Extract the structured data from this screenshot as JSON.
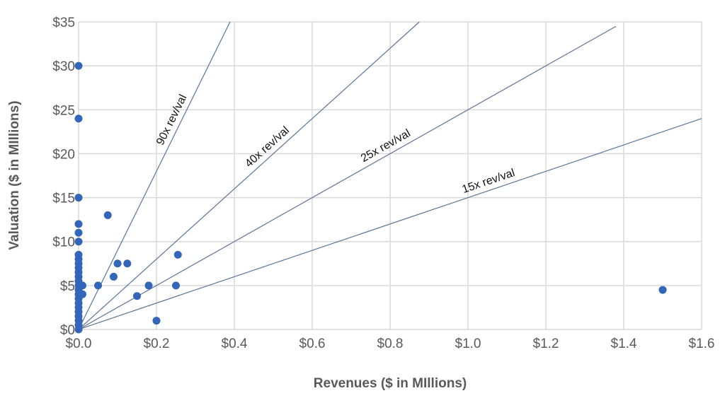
{
  "chart_data": {
    "type": "scatter",
    "title": "",
    "xlabel": "Revenues ($ in MIllions)",
    "ylabel": "Valuation ($ in MIllions)",
    "xlim": [
      0,
      1.6
    ],
    "ylim": [
      0,
      35
    ],
    "grid": true,
    "x_ticks": [
      "$0.0",
      "$0.2",
      "$0.4",
      "$0.6",
      "$0.8",
      "$1.0",
      "$1.2",
      "$1.4",
      "$1.6"
    ],
    "y_ticks": [
      "$0",
      "$5",
      "$10",
      "$15",
      "$20",
      "$25",
      "$30",
      "$35"
    ],
    "point_color": "#3366b8",
    "line_color": "#5a7596",
    "points": [
      [
        0,
        30
      ],
      [
        0,
        24
      ],
      [
        0,
        15
      ],
      [
        0,
        12
      ],
      [
        0,
        11
      ],
      [
        0,
        10
      ],
      [
        0,
        8.5
      ],
      [
        0,
        8
      ],
      [
        0,
        7.5
      ],
      [
        0,
        7
      ],
      [
        0,
        6.5
      ],
      [
        0,
        6
      ],
      [
        0,
        5.5
      ],
      [
        0,
        5
      ],
      [
        0,
        4.5
      ],
      [
        0,
        4
      ],
      [
        0,
        3.5
      ],
      [
        0,
        3
      ],
      [
        0,
        2.5
      ],
      [
        0,
        2
      ],
      [
        0,
        1.5
      ],
      [
        0,
        1
      ],
      [
        0,
        0.5
      ],
      [
        0,
        0
      ],
      [
        0.01,
        5
      ],
      [
        0.01,
        4
      ],
      [
        0.075,
        13
      ],
      [
        0.05,
        5
      ],
      [
        0.09,
        6
      ],
      [
        0.1,
        7.5
      ],
      [
        0.125,
        7.5
      ],
      [
        0.15,
        3.8
      ],
      [
        0.18,
        5
      ],
      [
        0.2,
        1
      ],
      [
        0.25,
        5
      ],
      [
        0.255,
        8.5
      ],
      [
        1.5,
        4.5
      ]
    ],
    "reference_lines": [
      {
        "label": "90x rev/val",
        "multiple": 90,
        "x_end": 0.389,
        "label_at": 0.26
      },
      {
        "label": "40x rev/val",
        "multiple": 40,
        "x_end": 0.875,
        "label_at": 0.5
      },
      {
        "label": "25x rev/val",
        "multiple": 25,
        "x_end": 1.38,
        "label_at": 0.8
      },
      {
        "label": "15x rev/val",
        "multiple": 15,
        "x_end": 1.6,
        "label_at": 1.06
      }
    ]
  }
}
